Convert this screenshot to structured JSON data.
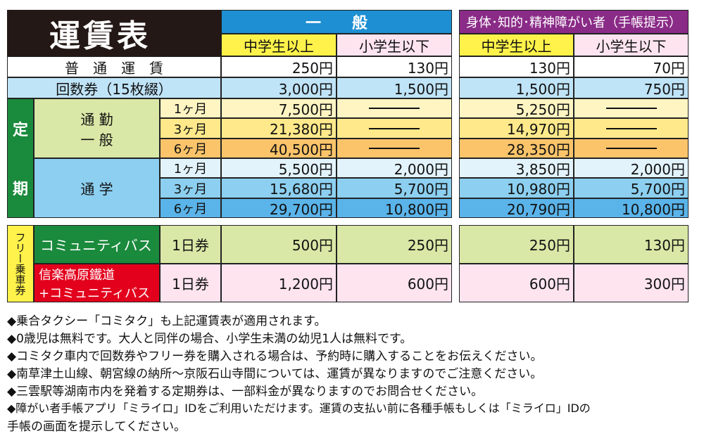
{
  "title": "運賃表",
  "header": {
    "general": "一　　般",
    "disabled": "身体･知的･精神障がい者（手帳提示）",
    "middle_up": "中学生以上",
    "elem_down": "小学生以下"
  },
  "rows": {
    "regular": {
      "label": "普　通　運　賃",
      "values": [
        "250円",
        "130円",
        "130円",
        "70円"
      ]
    },
    "coupon": {
      "label": "回数券（15枚綴）",
      "values": [
        "3,000円",
        "1,500円",
        "1,500円",
        "750円"
      ]
    }
  },
  "teiki": {
    "label_1": "定",
    "label_2": "期",
    "commute": {
      "label_1": "通 勤",
      "label_2": "一 般",
      "rows": [
        {
          "period": "1ヶ月",
          "values": [
            "7,500円",
            "—",
            "5,250円",
            "—"
          ]
        },
        {
          "period": "3ヶ月",
          "values": [
            "21,380円",
            "—",
            "14,970円",
            "—"
          ]
        },
        {
          "period": "6ヶ月",
          "values": [
            "40,500円",
            "—",
            "28,350円",
            "—"
          ]
        }
      ]
    },
    "school": {
      "label": "通 学",
      "rows": [
        {
          "period": "1ヶ月",
          "values": [
            "5,500円",
            "2,000円",
            "3,850円",
            "2,000円"
          ]
        },
        {
          "period": "3ヶ月",
          "values": [
            "15,680円",
            "5,700円",
            "10,980円",
            "5,700円"
          ]
        },
        {
          "period": "6ヶ月",
          "values": [
            "29,700円",
            "10,800円",
            "20,790円",
            "10,800円"
          ]
        }
      ]
    }
  },
  "free": {
    "side_label": "フリー乗車券",
    "items": [
      {
        "name": "コミュニティバス",
        "ticket": "1日券",
        "values": [
          "500円",
          "250円",
          "250円",
          "130円"
        ]
      },
      {
        "name_1": "信楽高原鐵道",
        "name_2": "+コミュニティバス",
        "ticket": "1日券",
        "values": [
          "1,200円",
          "600円",
          "600円",
          "300円"
        ]
      }
    ]
  },
  "notes": [
    "◆乗合タクシー「コミタク」も上記運賃表が適用されます。",
    "◆0歳児は無料です。大人と同伴の場合、小学生未満の幼児1人は無料です。",
    "◆コミタク車内で回数券やフリー券を購入される場合は、予約時に購入することをお伝えください。",
    "◆南草津土山線、朝宮線の納所～京阪石山寺間については、運賃が異なりますのでご注意ください。",
    "◆三雲駅等湖南市内を発着する定期券は、一部料金が異なりますのでお問合せください。",
    "◆障がい者手帳アプリ「ミライロ」IDをご利用いただけます。運賃の支払い前に各種手帳もしくは「ミライロ」IDの",
    "手帳の画面を提示してください。"
  ],
  "colors": {
    "blue_header": "#1d8fd2",
    "purple_header": "#8a2b87",
    "yellow": "#fff24a",
    "pink": "#fde4ef",
    "light_blue": "#bfe3f7",
    "green": "#1a8a3c",
    "light_green": "#d9e8a6",
    "cream": "#fff5c2",
    "light_yellow": "#ffe98a",
    "orange": "#fbc46a",
    "sky": "#8ccff0",
    "blue_row": "#5ab4ea",
    "red": "#e3001c",
    "free_yellow": "#fff0a0"
  }
}
